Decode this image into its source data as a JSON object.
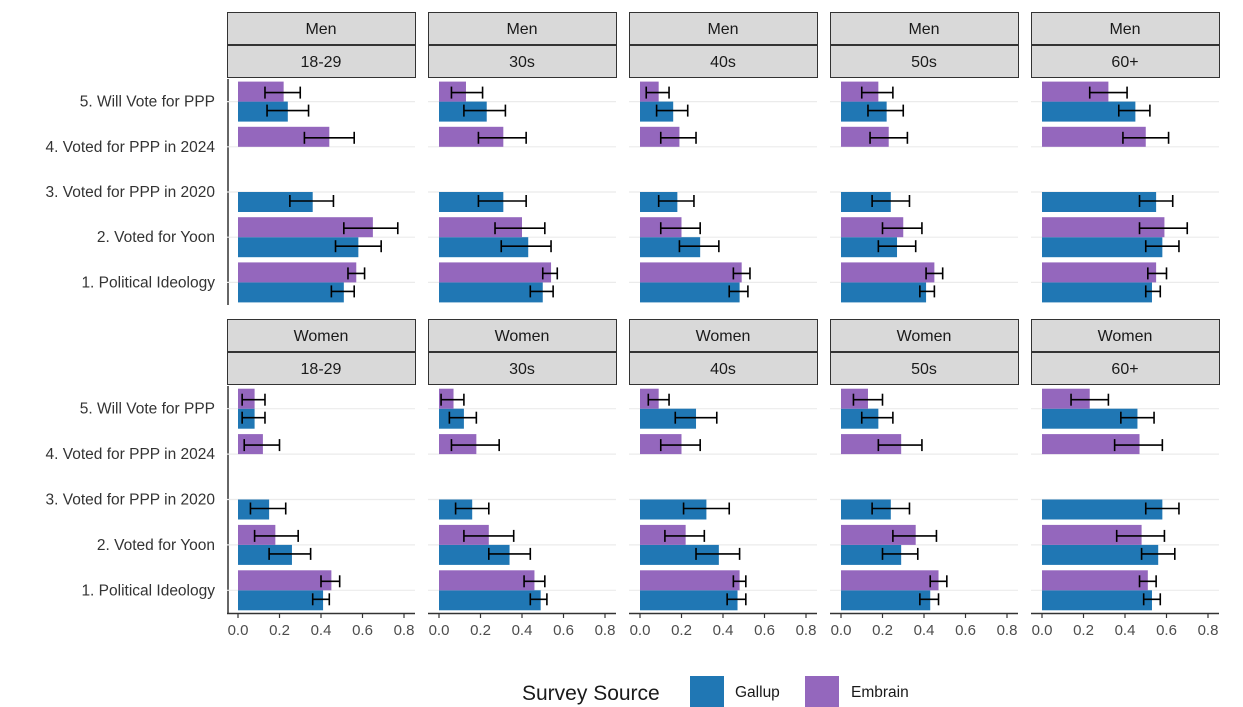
{
  "chart_data": {
    "type": "bar",
    "orientation": "horizontal",
    "facet_rows": [
      "Men",
      "Women"
    ],
    "facet_cols": [
      "18-29",
      "30s",
      "40s",
      "50s",
      "60+"
    ],
    "categories": [
      "5. Will Vote for PPP",
      "4. Voted for PPP in 2024",
      "3. Voted for PPP in 2020",
      "2. Voted for Yoon",
      "1. Political Ideology"
    ],
    "x_ticks": [
      "0.0",
      "0.2",
      "0.4",
      "0.6",
      "0.8"
    ],
    "xlim": [
      0,
      0.8
    ],
    "grid": true,
    "legend": {
      "title": "Survey Source",
      "position": "bottom",
      "items": [
        {
          "label": "Gallup",
          "color": "#2077b4"
        },
        {
          "label": "Embrain",
          "color": "#9467bd"
        }
      ]
    },
    "colors": {
      "Gallup": "#2077b4",
      "Embrain": "#9467bd"
    },
    "panels": [
      {
        "row": "Men",
        "col": "18-29",
        "Gallup": [
          [
            0.24,
            0.14,
            0.34
          ],
          [
            null,
            null,
            null
          ],
          [
            0.36,
            0.25,
            0.46
          ],
          [
            0.58,
            0.47,
            0.69
          ],
          [
            0.51,
            0.45,
            0.56
          ]
        ],
        "Embrain": [
          [
            0.22,
            0.13,
            0.3
          ],
          [
            0.44,
            0.32,
            0.56
          ],
          [
            null,
            null,
            null
          ],
          [
            0.65,
            0.51,
            0.77
          ],
          [
            0.57,
            0.53,
            0.61
          ]
        ]
      },
      {
        "row": "Men",
        "col": "30s",
        "Gallup": [
          [
            0.23,
            0.12,
            0.32
          ],
          [
            null,
            null,
            null
          ],
          [
            0.31,
            0.19,
            0.42
          ],
          [
            0.43,
            0.3,
            0.54
          ],
          [
            0.5,
            0.44,
            0.55
          ]
        ],
        "Embrain": [
          [
            0.13,
            0.06,
            0.21
          ],
          [
            0.31,
            0.19,
            0.42
          ],
          [
            null,
            null,
            null
          ],
          [
            0.4,
            0.27,
            0.51
          ],
          [
            0.54,
            0.5,
            0.57
          ]
        ]
      },
      {
        "row": "Men",
        "col": "40s",
        "Gallup": [
          [
            0.16,
            0.08,
            0.23
          ],
          [
            null,
            null,
            null
          ],
          [
            0.18,
            0.09,
            0.26
          ],
          [
            0.29,
            0.19,
            0.38
          ],
          [
            0.48,
            0.43,
            0.52
          ]
        ],
        "Embrain": [
          [
            0.09,
            0.03,
            0.14
          ],
          [
            0.19,
            0.1,
            0.27
          ],
          [
            null,
            null,
            null
          ],
          [
            0.2,
            0.1,
            0.29
          ],
          [
            0.49,
            0.45,
            0.53
          ]
        ]
      },
      {
        "row": "Men",
        "col": "50s",
        "Gallup": [
          [
            0.22,
            0.13,
            0.3
          ],
          [
            null,
            null,
            null
          ],
          [
            0.24,
            0.15,
            0.33
          ],
          [
            0.27,
            0.18,
            0.36
          ],
          [
            0.41,
            0.38,
            0.45
          ]
        ],
        "Embrain": [
          [
            0.18,
            0.1,
            0.25
          ],
          [
            0.23,
            0.14,
            0.32
          ],
          [
            null,
            null,
            null
          ],
          [
            0.3,
            0.2,
            0.39
          ],
          [
            0.45,
            0.41,
            0.49
          ]
        ]
      },
      {
        "row": "Men",
        "col": "60+",
        "Gallup": [
          [
            0.45,
            0.37,
            0.52
          ],
          [
            null,
            null,
            null
          ],
          [
            0.55,
            0.47,
            0.63
          ],
          [
            0.58,
            0.5,
            0.66
          ],
          [
            0.53,
            0.5,
            0.57
          ]
        ],
        "Embrain": [
          [
            0.32,
            0.23,
            0.41
          ],
          [
            0.5,
            0.39,
            0.61
          ],
          [
            null,
            null,
            null
          ],
          [
            0.59,
            0.47,
            0.7
          ],
          [
            0.55,
            0.51,
            0.6
          ]
        ]
      },
      {
        "row": "Women",
        "col": "18-29",
        "Gallup": [
          [
            0.08,
            0.02,
            0.13
          ],
          [
            null,
            null,
            null
          ],
          [
            0.15,
            0.06,
            0.23
          ],
          [
            0.26,
            0.15,
            0.35
          ],
          [
            0.41,
            0.36,
            0.44
          ]
        ],
        "Embrain": [
          [
            0.08,
            0.02,
            0.13
          ],
          [
            0.12,
            0.03,
            0.2
          ],
          [
            null,
            null,
            null
          ],
          [
            0.18,
            0.08,
            0.29
          ],
          [
            0.45,
            0.4,
            0.49
          ]
        ]
      },
      {
        "row": "Women",
        "col": "30s",
        "Gallup": [
          [
            0.12,
            0.05,
            0.18
          ],
          [
            null,
            null,
            null
          ],
          [
            0.16,
            0.08,
            0.24
          ],
          [
            0.34,
            0.24,
            0.44
          ],
          [
            0.49,
            0.44,
            0.52
          ]
        ],
        "Embrain": [
          [
            0.07,
            0.01,
            0.12
          ],
          [
            0.18,
            0.06,
            0.29
          ],
          [
            null,
            null,
            null
          ],
          [
            0.24,
            0.12,
            0.36
          ],
          [
            0.46,
            0.41,
            0.51
          ]
        ]
      },
      {
        "row": "Women",
        "col": "40s",
        "Gallup": [
          [
            0.27,
            0.17,
            0.37
          ],
          [
            null,
            null,
            null
          ],
          [
            0.32,
            0.21,
            0.43
          ],
          [
            0.38,
            0.27,
            0.48
          ],
          [
            0.47,
            0.42,
            0.51
          ]
        ],
        "Embrain": [
          [
            0.09,
            0.04,
            0.14
          ],
          [
            0.2,
            0.1,
            0.29
          ],
          [
            null,
            null,
            null
          ],
          [
            0.22,
            0.12,
            0.31
          ],
          [
            0.48,
            0.45,
            0.51
          ]
        ]
      },
      {
        "row": "Women",
        "col": "50s",
        "Gallup": [
          [
            0.18,
            0.1,
            0.25
          ],
          [
            null,
            null,
            null
          ],
          [
            0.24,
            0.15,
            0.33
          ],
          [
            0.29,
            0.2,
            0.37
          ],
          [
            0.43,
            0.38,
            0.47
          ]
        ],
        "Embrain": [
          [
            0.13,
            0.06,
            0.2
          ],
          [
            0.29,
            0.18,
            0.39
          ],
          [
            null,
            null,
            null
          ],
          [
            0.36,
            0.25,
            0.46
          ],
          [
            0.47,
            0.43,
            0.51
          ]
        ]
      },
      {
        "row": "Women",
        "col": "60+",
        "Gallup": [
          [
            0.46,
            0.38,
            0.54
          ],
          [
            null,
            null,
            null
          ],
          [
            0.58,
            0.5,
            0.66
          ],
          [
            0.56,
            0.48,
            0.64
          ],
          [
            0.53,
            0.49,
            0.57
          ]
        ],
        "Embrain": [
          [
            0.23,
            0.14,
            0.32
          ],
          [
            0.47,
            0.35,
            0.58
          ],
          [
            null,
            null,
            null
          ],
          [
            0.48,
            0.36,
            0.59
          ],
          [
            0.51,
            0.47,
            0.55
          ]
        ]
      }
    ]
  }
}
